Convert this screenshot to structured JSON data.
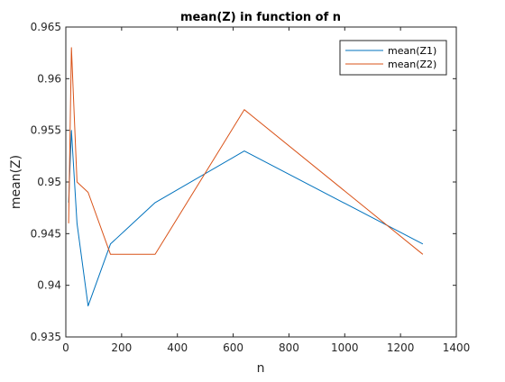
{
  "chart_data": {
    "type": "line",
    "title": "mean(Z) in function of n",
    "xlabel": "n",
    "ylabel": "mean(Z)",
    "xlim": [
      0,
      1400
    ],
    "ylim": [
      0.935,
      0.965
    ],
    "xticks": [
      0,
      200,
      400,
      600,
      800,
      1000,
      1200,
      1400
    ],
    "yticks": [
      0.935,
      0.94,
      0.945,
      0.95,
      0.955,
      0.96,
      0.965
    ],
    "xtick_labels": [
      "0",
      "200",
      "400",
      "600",
      "800",
      "1000",
      "1200",
      "1400"
    ],
    "ytick_labels": [
      "0.935",
      "0.94",
      "0.945",
      "0.95",
      "0.955",
      "0.96",
      "0.965"
    ],
    "grid": false,
    "legend_position": "top-right",
    "x": [
      10,
      20,
      40,
      80,
      160,
      320,
      640,
      1280
    ],
    "series": [
      {
        "name": "mean(Z1)",
        "color": "#0072BD",
        "values": [
          0.948,
          0.955,
          0.946,
          0.938,
          0.944,
          0.948,
          0.953,
          0.944
        ]
      },
      {
        "name": "mean(Z2)",
        "color": "#D95319",
        "values": [
          0.946,
          0.963,
          0.95,
          0.949,
          0.943,
          0.943,
          0.957,
          0.943
        ]
      }
    ]
  }
}
